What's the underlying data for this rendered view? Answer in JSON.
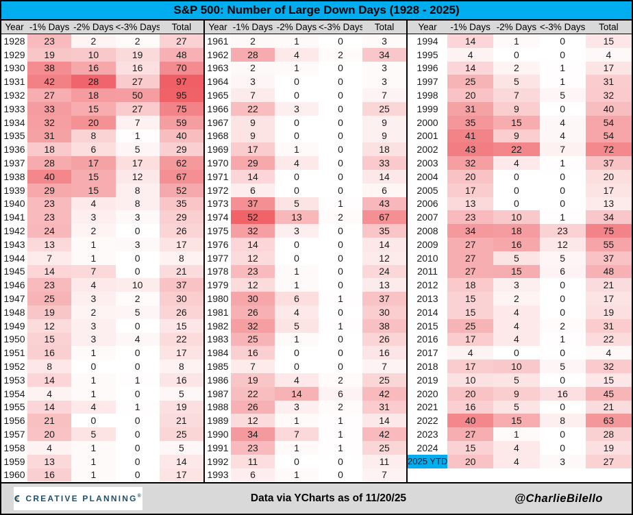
{
  "title": "S&P 500: Number of Large Down Days (1928 - 2025)",
  "footer": {
    "logo_text": "CREATIVE PLANNING",
    "logo_reg": "®",
    "center_text": "Data via YCharts as of 11/20/25",
    "right_text": "@CharlieBilello"
  },
  "colors": {
    "accent_cyan": "#00AEEF",
    "header_gray": "#D9D9D9",
    "heat_max_red": "#EE5A60",
    "logo_navy": "#1D4F6E",
    "logo_gold": "#C8A25F"
  },
  "heat": {
    "divisors": [
      55,
      30,
      85,
      100
    ]
  },
  "highlight_year": "2025 YTD",
  "chart_data": {
    "type": "table",
    "title": "S&P 500: Number of Large Down Days (1928 - 2025)",
    "columns": [
      "Year",
      "-1% Days",
      "-2% Days",
      "<-3% Days",
      "Total"
    ],
    "blocks": [
      {
        "rows": [
          [
            "1928",
            23,
            2,
            2,
            27
          ],
          [
            "1929",
            19,
            10,
            19,
            48
          ],
          [
            "1930",
            38,
            16,
            16,
            70
          ],
          [
            "1931",
            42,
            28,
            27,
            97
          ],
          [
            "1932",
            27,
            18,
            50,
            95
          ],
          [
            "1933",
            33,
            15,
            27,
            75
          ],
          [
            "1934",
            32,
            20,
            7,
            59
          ],
          [
            "1935",
            31,
            8,
            1,
            40
          ],
          [
            "1936",
            18,
            6,
            5,
            29
          ],
          [
            "1937",
            28,
            17,
            17,
            62
          ],
          [
            "1938",
            40,
            15,
            12,
            67
          ],
          [
            "1939",
            29,
            15,
            8,
            52
          ],
          [
            "1940",
            23,
            4,
            8,
            35
          ],
          [
            "1941",
            23,
            3,
            3,
            29
          ],
          [
            "1942",
            24,
            2,
            0,
            26
          ],
          [
            "1943",
            13,
            1,
            3,
            17
          ],
          [
            "1944",
            7,
            1,
            0,
            8
          ],
          [
            "1945",
            14,
            7,
            0,
            21
          ],
          [
            "1946",
            23,
            4,
            10,
            37
          ],
          [
            "1947",
            25,
            3,
            2,
            30
          ],
          [
            "1948",
            19,
            2,
            5,
            26
          ],
          [
            "1949",
            12,
            3,
            0,
            15
          ],
          [
            "1950",
            15,
            3,
            4,
            22
          ],
          [
            "1951",
            16,
            1,
            0,
            17
          ],
          [
            "1952",
            8,
            0,
            0,
            8
          ],
          [
            "1953",
            14,
            1,
            1,
            16
          ],
          [
            "1954",
            4,
            1,
            0,
            5
          ],
          [
            "1955",
            14,
            4,
            1,
            19
          ],
          [
            "1956",
            21,
            0,
            0,
            21
          ],
          [
            "1957",
            20,
            5,
            0,
            25
          ],
          [
            "1958",
            4,
            1,
            0,
            5
          ],
          [
            "1959",
            13,
            1,
            0,
            14
          ],
          [
            "1960",
            16,
            1,
            0,
            17
          ]
        ]
      },
      {
        "rows": [
          [
            "1961",
            2,
            1,
            0,
            3
          ],
          [
            "1962",
            28,
            4,
            2,
            34
          ],
          [
            "1963",
            2,
            1,
            0,
            3
          ],
          [
            "1964",
            3,
            0,
            0,
            3
          ],
          [
            "1965",
            7,
            0,
            0,
            7
          ],
          [
            "1966",
            22,
            3,
            0,
            25
          ],
          [
            "1967",
            9,
            0,
            0,
            9
          ],
          [
            "1968",
            9,
            0,
            0,
            9
          ],
          [
            "1969",
            17,
            1,
            0,
            18
          ],
          [
            "1970",
            29,
            4,
            0,
            33
          ],
          [
            "1971",
            14,
            0,
            0,
            14
          ],
          [
            "1972",
            6,
            0,
            0,
            6
          ],
          [
            "1973",
            37,
            5,
            1,
            43
          ],
          [
            "1974",
            52,
            13,
            2,
            67
          ],
          [
            "1975",
            32,
            3,
            0,
            35
          ],
          [
            "1976",
            14,
            0,
            0,
            14
          ],
          [
            "1977",
            12,
            0,
            0,
            12
          ],
          [
            "1978",
            23,
            1,
            0,
            24
          ],
          [
            "1979",
            12,
            1,
            0,
            13
          ],
          [
            "1980",
            30,
            6,
            1,
            37
          ],
          [
            "1981",
            26,
            4,
            0,
            30
          ],
          [
            "1982",
            32,
            5,
            1,
            38
          ],
          [
            "1983",
            25,
            1,
            0,
            26
          ],
          [
            "1984",
            16,
            0,
            0,
            16
          ],
          [
            "1985",
            7,
            0,
            0,
            7
          ],
          [
            "1986",
            19,
            4,
            2,
            25
          ],
          [
            "1987",
            22,
            14,
            6,
            42
          ],
          [
            "1988",
            26,
            3,
            2,
            31
          ],
          [
            "1989",
            12,
            1,
            1,
            14
          ],
          [
            "1990",
            34,
            7,
            1,
            42
          ],
          [
            "1991",
            23,
            1,
            1,
            25
          ],
          [
            "1992",
            11,
            0,
            0,
            11
          ],
          [
            "1993",
            6,
            1,
            0,
            7
          ]
        ]
      },
      {
        "rows": [
          [
            "1994",
            14,
            1,
            0,
            15
          ],
          [
            "1995",
            4,
            0,
            0,
            4
          ],
          [
            "1996",
            14,
            2,
            1,
            17
          ],
          [
            "1997",
            25,
            5,
            1,
            31
          ],
          [
            "1998",
            20,
            7,
            5,
            32
          ],
          [
            "1999",
            31,
            9,
            0,
            40
          ],
          [
            "2000",
            35,
            15,
            4,
            54
          ],
          [
            "2001",
            41,
            9,
            4,
            54
          ],
          [
            "2002",
            43,
            22,
            7,
            72
          ],
          [
            "2003",
            32,
            4,
            1,
            37
          ],
          [
            "2004",
            20,
            0,
            0,
            20
          ],
          [
            "2005",
            17,
            0,
            0,
            17
          ],
          [
            "2006",
            13,
            0,
            0,
            13
          ],
          [
            "2007",
            23,
            10,
            1,
            34
          ],
          [
            "2008",
            34,
            18,
            23,
            75
          ],
          [
            "2009",
            27,
            16,
            12,
            55
          ],
          [
            "2010",
            27,
            5,
            5,
            37
          ],
          [
            "2011",
            27,
            15,
            6,
            48
          ],
          [
            "2012",
            18,
            3,
            0,
            21
          ],
          [
            "2013",
            15,
            2,
            0,
            17
          ],
          [
            "2014",
            15,
            4,
            0,
            19
          ],
          [
            "2015",
            25,
            4,
            2,
            31
          ],
          [
            "2016",
            17,
            4,
            1,
            22
          ],
          [
            "2017",
            4,
            0,
            0,
            4
          ],
          [
            "2018",
            17,
            10,
            5,
            32
          ],
          [
            "2019",
            10,
            5,
            0,
            15
          ],
          [
            "2020",
            20,
            9,
            16,
            45
          ],
          [
            "2021",
            16,
            5,
            0,
            21
          ],
          [
            "2022",
            40,
            15,
            8,
            63
          ],
          [
            "2023",
            27,
            1,
            0,
            28
          ],
          [
            "2024",
            15,
            4,
            0,
            19
          ],
          [
            "2025 YTD",
            20,
            4,
            3,
            27
          ]
        ]
      }
    ]
  }
}
